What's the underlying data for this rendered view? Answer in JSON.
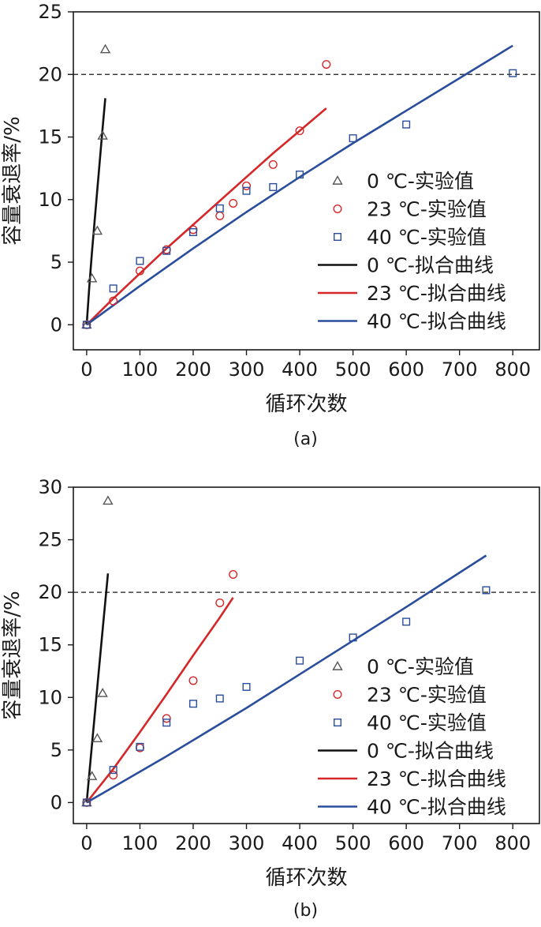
{
  "chart_data": [
    {
      "type": "line",
      "panel_label": "(a)",
      "xlabel": "循环次数",
      "ylabel": "容量衰退率/%",
      "xlim": [
        -25,
        850
      ],
      "ylim": [
        -2,
        25
      ],
      "xticks": [
        0,
        100,
        200,
        300,
        400,
        500,
        600,
        700,
        800
      ],
      "yticks": [
        0,
        5,
        10,
        15,
        20,
        25
      ],
      "reference_line": {
        "y": 20,
        "style": "dashed",
        "color": "#1a1a1a"
      },
      "legend_position": "right",
      "series": [
        {
          "name": "0 ℃-实验值",
          "kind": "scatter",
          "marker": "triangle",
          "color": "#555555",
          "x": [
            0,
            10,
            20,
            30,
            35
          ],
          "y": [
            0,
            3.7,
            7.5,
            15.1,
            22.0
          ]
        },
        {
          "name": "23 ℃-实验值",
          "kind": "scatter",
          "marker": "circle",
          "color": "#d62728",
          "x": [
            0,
            50,
            100,
            150,
            200,
            250,
            275,
            300,
            350,
            400,
            450
          ],
          "y": [
            0,
            1.9,
            4.3,
            6.0,
            7.6,
            8.7,
            9.7,
            11.1,
            12.8,
            15.5,
            20.8
          ]
        },
        {
          "name": "40 ℃-实验值",
          "kind": "scatter",
          "marker": "square",
          "color": "#2a4d9c",
          "x": [
            0,
            50,
            100,
            150,
            200,
            250,
            300,
            350,
            400,
            500,
            600,
            800
          ],
          "y": [
            0,
            2.9,
            5.1,
            5.9,
            7.4,
            9.3,
            10.7,
            11.0,
            12.0,
            14.9,
            16.0,
            20.1
          ]
        },
        {
          "name": "0 ℃-拟合曲线",
          "kind": "line",
          "color": "#111111",
          "x": [
            0,
            5,
            10,
            15,
            20,
            25,
            30,
            35
          ],
          "y": [
            0,
            3.1,
            5.8,
            8.3,
            10.8,
            13.3,
            15.7,
            18.1
          ]
        },
        {
          "name": "23 ℃-拟合曲线",
          "kind": "line",
          "color": "#d62728",
          "x": [
            0,
            50,
            100,
            150,
            200,
            250,
            300,
            350,
            400,
            450
          ],
          "y": [
            0,
            2.1,
            4.1,
            6.1,
            8.0,
            9.9,
            11.8,
            13.7,
            15.5,
            17.3
          ]
        },
        {
          "name": "40 ℃-拟合曲线",
          "kind": "line",
          "color": "#2a4d9c",
          "x": [
            0,
            100,
            200,
            300,
            400,
            500,
            600,
            700,
            800
          ],
          "y": [
            0,
            3.1,
            6.1,
            9.0,
            11.8,
            14.5,
            17.1,
            19.7,
            22.3
          ]
        }
      ]
    },
    {
      "type": "line",
      "panel_label": "(b)",
      "xlabel": "循环次数",
      "ylabel": "容量衰退率/%",
      "xlim": [
        -25,
        850
      ],
      "ylim": [
        -2,
        30
      ],
      "xticks": [
        0,
        100,
        200,
        300,
        400,
        500,
        600,
        700,
        800
      ],
      "yticks": [
        0,
        5,
        10,
        15,
        20,
        25,
        30
      ],
      "reference_line": {
        "y": 20,
        "style": "dashed",
        "color": "#1a1a1a"
      },
      "legend_position": "right",
      "series": [
        {
          "name": "0 ℃-实验值",
          "kind": "scatter",
          "marker": "triangle",
          "color": "#555555",
          "x": [
            0,
            10,
            20,
            30,
            40
          ],
          "y": [
            0,
            2.5,
            6.1,
            10.4,
            28.7
          ]
        },
        {
          "name": "23 ℃-实验值",
          "kind": "scatter",
          "marker": "circle",
          "color": "#d62728",
          "x": [
            0,
            50,
            100,
            150,
            200,
            250,
            275
          ],
          "y": [
            0,
            2.6,
            5.2,
            8.0,
            11.6,
            19.0,
            21.7
          ]
        },
        {
          "name": "40 ℃-实验值",
          "kind": "scatter",
          "marker": "square",
          "color": "#2a4d9c",
          "x": [
            0,
            50,
            100,
            150,
            200,
            250,
            300,
            400,
            500,
            600,
            750
          ],
          "y": [
            0,
            3.1,
            5.3,
            7.6,
            9.4,
            9.9,
            11.0,
            13.5,
            15.7,
            17.2,
            20.2
          ]
        },
        {
          "name": "0 ℃-拟合曲线",
          "kind": "line",
          "color": "#111111",
          "x": [
            0,
            10,
            20,
            30,
            40
          ],
          "y": [
            0,
            5.5,
            11.0,
            16.4,
            21.8
          ]
        },
        {
          "name": "23 ℃-拟合曲线",
          "kind": "line",
          "color": "#d62728",
          "x": [
            0,
            50,
            100,
            150,
            200,
            250,
            275
          ],
          "y": [
            0,
            3.2,
            6.7,
            10.3,
            14.0,
            17.6,
            19.5
          ]
        },
        {
          "name": "40 ℃-拟合曲线",
          "kind": "line",
          "color": "#2a4d9c",
          "x": [
            0,
            150,
            300,
            450,
            600,
            750
          ],
          "y": [
            0,
            4.4,
            9.0,
            13.8,
            18.6,
            23.5
          ]
        }
      ]
    }
  ]
}
